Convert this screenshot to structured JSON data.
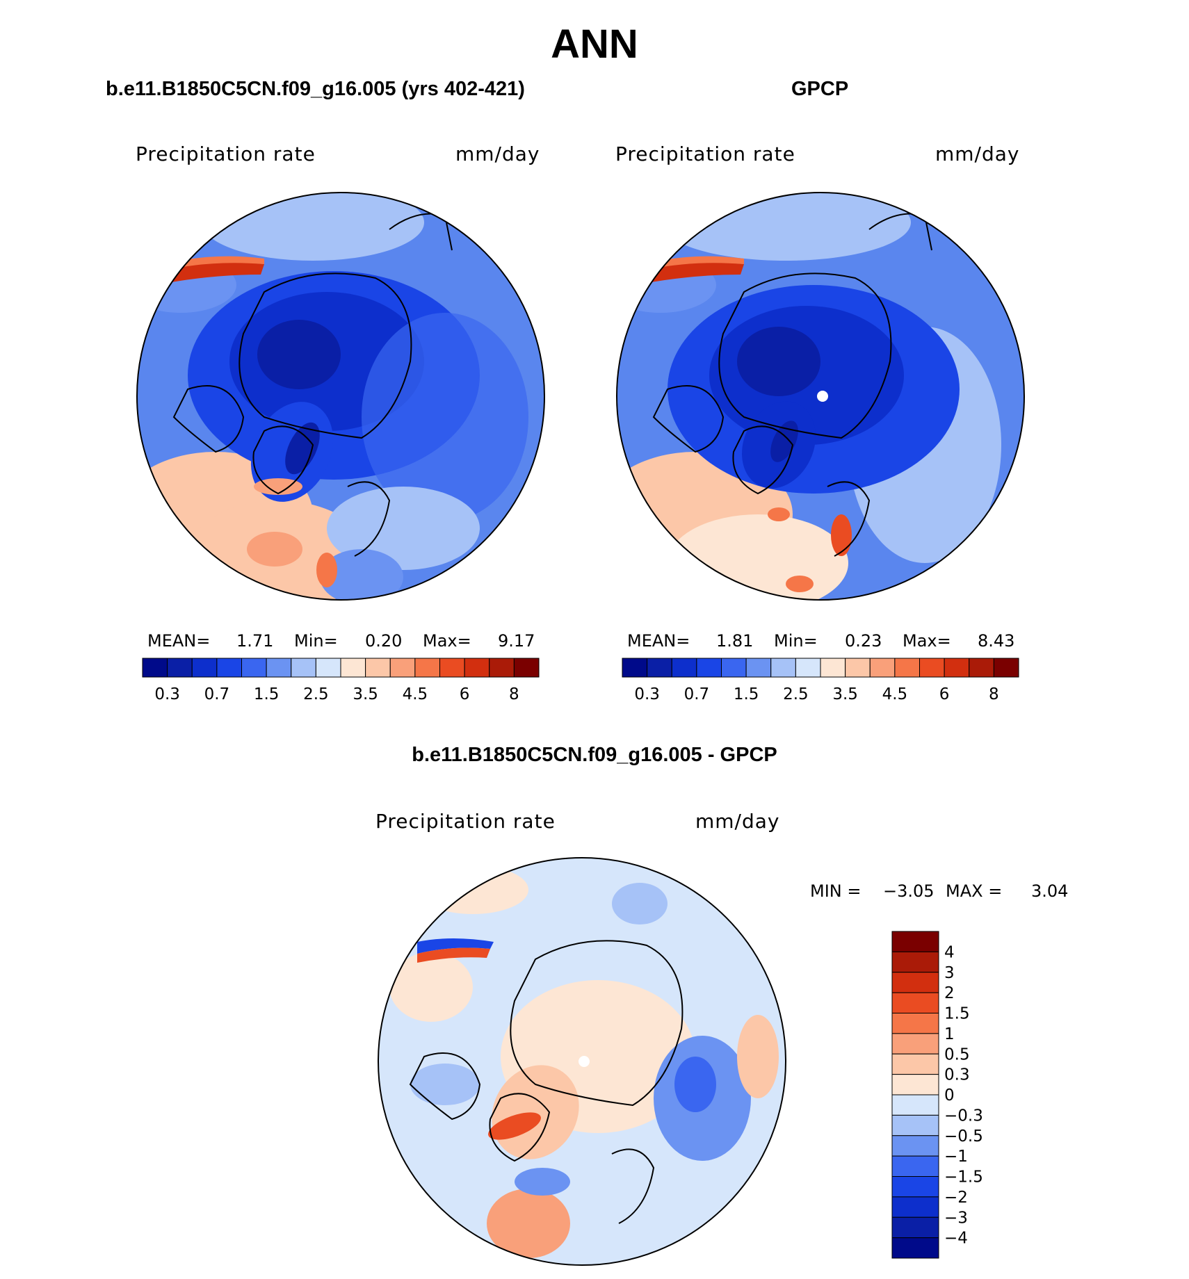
{
  "chart_data": {
    "type": "heatmap",
    "title": "ANN",
    "panels": [
      {
        "id": "model",
        "subtitle": "b.e11.B1850C5CN.f09_g16.005 (yrs 402-421)",
        "left_label": "Precipitation  rate",
        "right_label": "mm/day",
        "projection": "north polar stereographic",
        "stats": {
          "mean_label": "MEAN=",
          "mean": "1.71",
          "min_label": "Min=",
          "min": "0.20",
          "max_label": "Max=",
          "max": "9.17"
        },
        "colorbar_levels": [
          "0.3",
          "0.7",
          "1.5",
          "2.5",
          "3.5",
          "4.5",
          "6",
          "8"
        ]
      },
      {
        "id": "obs",
        "subtitle": "GPCP",
        "left_label": "Precipitation  rate",
        "right_label": "mm/day",
        "projection": "north polar stereographic",
        "stats": {
          "mean_label": "MEAN=",
          "mean": "1.81",
          "min_label": "Min=",
          "min": "0.23",
          "max_label": "Max=",
          "max": "8.43"
        },
        "colorbar_levels": [
          "0.3",
          "0.7",
          "1.5",
          "2.5",
          "3.5",
          "4.5",
          "6",
          "8"
        ]
      },
      {
        "id": "diff",
        "subtitle": "b.e11.B1850C5CN.f09_g16.005 - GPCP",
        "left_label": "Precipitation  rate",
        "right_label": "mm/day",
        "projection": "north polar stereographic",
        "stats": {
          "min_label": "MIN =",
          "min": "−3.05",
          "max_label": "MAX =",
          "max": "3.04"
        },
        "colorbar_levels": [
          "4",
          "3",
          "2",
          "1.5",
          "1",
          "0.5",
          "0.3",
          "0",
          "−0.3",
          "−0.5",
          "−1",
          "−1.5",
          "−2",
          "−3",
          "−4"
        ]
      }
    ],
    "colorscale": [
      "#000a8a",
      "#0a1fa6",
      "#0d2fcc",
      "#1a45e6",
      "#3a66f0",
      "#6b93f2",
      "#a6c2f7",
      "#d6e6fb",
      "#fde6d4",
      "#fcc7a8",
      "#f9a07a",
      "#f57648",
      "#ea4c22",
      "#d22f0f",
      "#aa1b08",
      "#7a0000"
    ]
  }
}
